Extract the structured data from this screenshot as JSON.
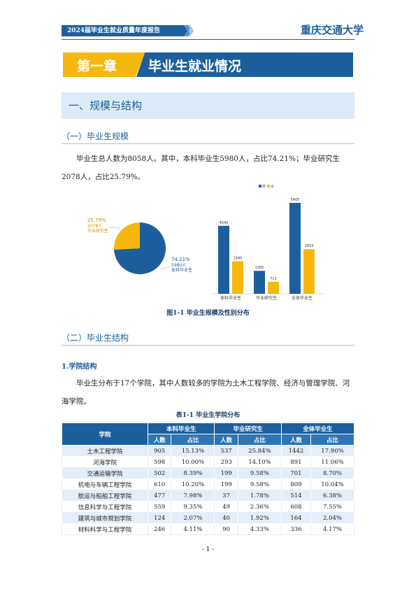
{
  "header": {
    "report_title": "2024届毕业生就业质量年度报告",
    "logo_text": "重庆交通大学"
  },
  "chapter": {
    "number": "第一章",
    "title": "毕业生就业情况"
  },
  "section": "一、规模与结构",
  "subsection1": "（一）毕业生规模",
  "paragraph1": "毕业生总人数为8058人。其中，本科毕业生5980人，占比74.21%；毕业研究生2078人，占比25.79%。",
  "pie": {
    "type": "pie",
    "names": [
      "本科毕业生",
      "毕业研究生"
    ],
    "values": [
      74.21,
      25.79
    ],
    "value_labels": [
      "74.21%",
      "25.79%"
    ],
    "count_labels": [
      "5980人",
      "2078人"
    ],
    "colors": [
      "#1c5f9c",
      "#f6b80f"
    ]
  },
  "bar": {
    "type": "bar",
    "categories": [
      "本科毕业生",
      "毕业研究生",
      "全体毕业生"
    ],
    "series": [
      {
        "name": "男",
        "color": "#1c5f9c",
        "values": [
          4040,
          1365,
          5405
        ]
      },
      {
        "name": "女",
        "color": "#f6b80f",
        "values": [
          1940,
          713,
          2653
        ]
      }
    ]
  },
  "figure_caption": "图1-1 毕业生规模及性别分布",
  "subsection2": "（二）毕业生结构",
  "subheading": "1.学院结构",
  "paragraph2": "毕业生分布于17个学院，其中人数较多的学院为土木工程学院、经济与管理学院、河海学院。",
  "table": {
    "caption": "表1-1 毕业生学院分布",
    "corner": "学院",
    "groups": [
      "本科毕业生",
      "毕业研究生",
      "全体毕业生"
    ],
    "subheaders": [
      "人数",
      "占比",
      "人数",
      "占比",
      "人数",
      "占比"
    ],
    "rows": [
      [
        "土木工程学院",
        "905",
        "15.13%",
        "537",
        "25.84%",
        "1442",
        "17.90%"
      ],
      [
        "河海学院",
        "598",
        "10.00%",
        "293",
        "14.10%",
        "891",
        "11.06%"
      ],
      [
        "交通运输学院",
        "502",
        "8.39%",
        "199",
        "9.58%",
        "701",
        "8.70%"
      ],
      [
        "机电与车辆工程学院",
        "610",
        "10.20%",
        "199",
        "9.58%",
        "809",
        "10.04%"
      ],
      [
        "航运与船舶工程学院",
        "477",
        "7.98%",
        "37",
        "1.78%",
        "514",
        "6.38%"
      ],
      [
        "信息科学与工程学院",
        "559",
        "9.35%",
        "49",
        "2.36%",
        "608",
        "7.55%"
      ],
      [
        "建筑与城市规划学院",
        "124",
        "2.07%",
        "40",
        "1.92%",
        "164",
        "2.04%"
      ],
      [
        "材料科学与工程学院",
        "246",
        "4.11%",
        "90",
        "4.33%",
        "336",
        "4.17%"
      ]
    ]
  },
  "page_number": "- 1 -"
}
